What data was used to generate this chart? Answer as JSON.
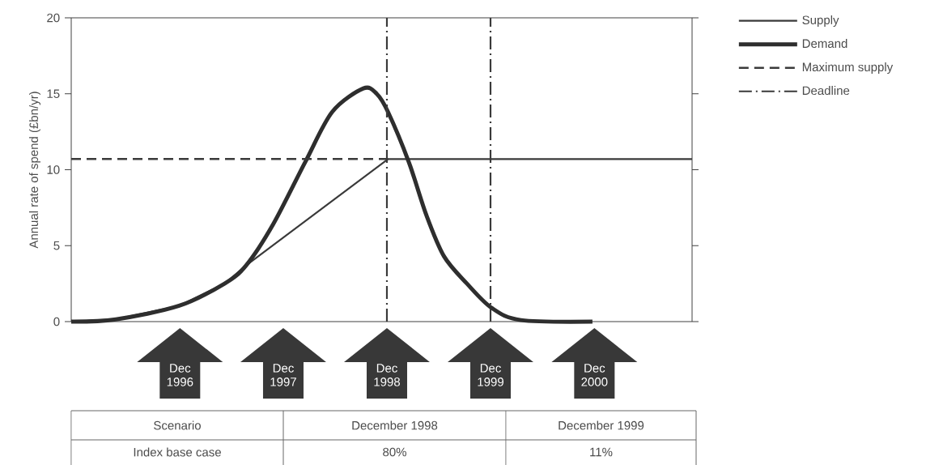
{
  "chart_data": {
    "type": "line",
    "ylabel": "Annual rate of spend (£bn/yr)",
    "xlim": [
      "1995-11-14",
      "2001-11-11"
    ],
    "ylim": [
      0,
      20
    ],
    "yticks": [
      0,
      5,
      10,
      15,
      20
    ],
    "xticks": [
      {
        "value": "1996-12-01",
        "label": "Dec 1996"
      },
      {
        "value": "1997-12-01",
        "label": "Dec 1997"
      },
      {
        "value": "1998-12-01",
        "label": "Dec 1998"
      },
      {
        "value": "1999-12-01",
        "label": "Dec 1999"
      },
      {
        "value": "2000-12-01",
        "label": "Dec 2000"
      }
    ],
    "series": [
      {
        "name": "Supply",
        "color": "#3a3a3a",
        "line_style": "solid",
        "x": [
          "1995-11-14",
          "1996-04-19",
          "1996-11-28",
          "1997-05-08",
          "1997-07-23",
          "1998-12-05",
          "2001-11-11"
        ],
        "values": [
          0,
          0.15,
          1.04,
          2.5,
          3.7,
          10.7,
          10.7
        ]
      },
      {
        "name": "Demand",
        "color": "#2e2e2e",
        "line_style": "solid",
        "x": [
          "1995-11-14",
          "1996-04-19",
          "1996-11-28",
          "1997-05-08",
          "1997-07-23",
          "1997-10-26",
          "1998-02-16",
          "1998-05-22",
          "1998-09-09",
          "1998-10-26",
          "1998-12-05",
          "1999-02-16",
          "1999-04-19",
          "1999-06-20",
          "1999-09-09",
          "1999-12-05",
          "2000-03-17",
          "2000-11-24"
        ],
        "values": [
          0,
          0.15,
          1.04,
          2.5,
          3.7,
          6.4,
          10.5,
          13.8,
          15.35,
          15.0,
          13.8,
          10.5,
          7.0,
          4.3,
          2.5,
          0.9,
          0.1,
          0
        ]
      },
      {
        "name": "Maximum supply",
        "color": "#3a3a3a",
        "line_style": "dashed",
        "x": [
          "1995-11-14",
          "1998-12-05"
        ],
        "values": [
          10.7,
          10.7
        ]
      },
      {
        "name": "Deadline",
        "color": "#3a3a3a",
        "line_style": "dashdot",
        "x": [
          "1998-12-01",
          "1998-12-01",
          null,
          "1999-12-01",
          "1999-12-01"
        ],
        "values": [
          0,
          20,
          null,
          0,
          20
        ]
      }
    ],
    "legend": "right",
    "grid": false,
    "marker": "none",
    "annotations": [
      "Scenario",
      "December 1998",
      "December 1999",
      "Index base case",
      "80%",
      "11%"
    ]
  }
}
